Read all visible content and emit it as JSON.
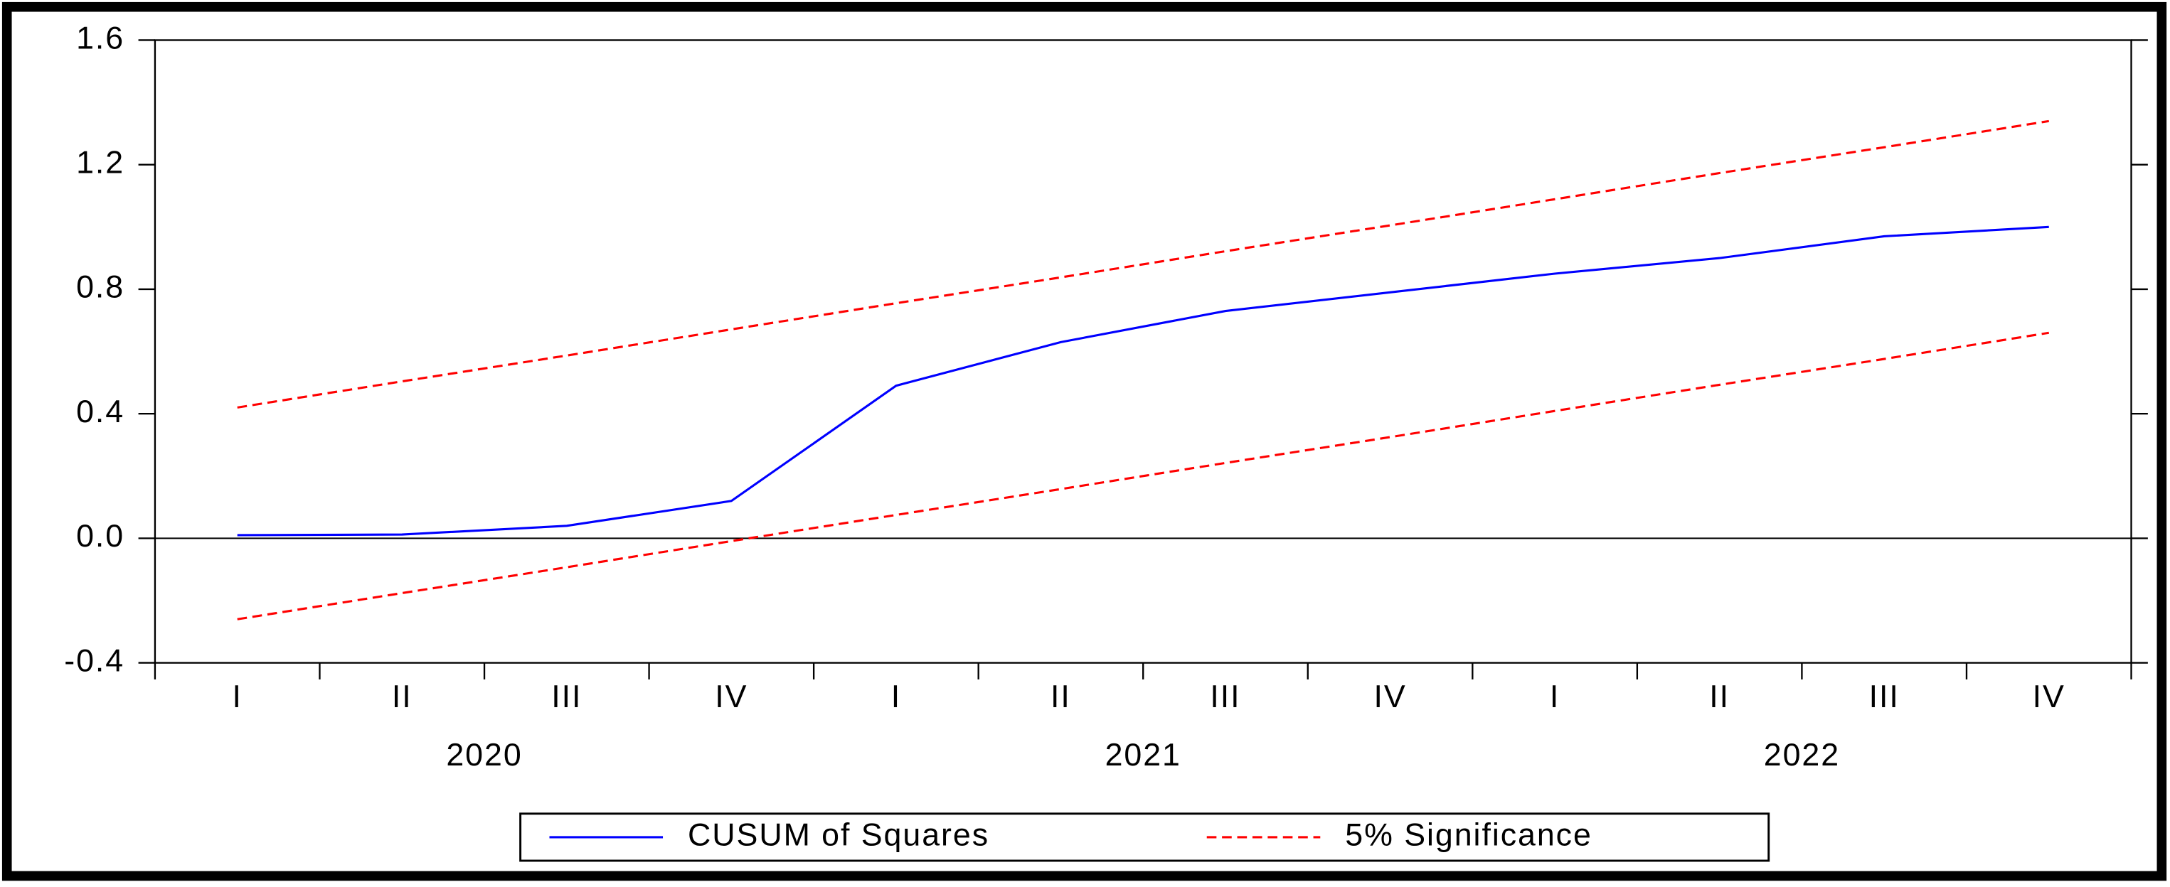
{
  "chart_data": {
    "type": "line",
    "categories": [
      "I",
      "II",
      "III",
      "IV",
      "I",
      "II",
      "III",
      "IV",
      "I",
      "II",
      "III",
      "IV"
    ],
    "years": [
      "2020",
      "2021",
      "2022"
    ],
    "ylim": [
      -0.4,
      1.6
    ],
    "yticks": [
      -0.4,
      {
        "value": 0,
        "label": "0.0"
      },
      0.4,
      0.8,
      1.2,
      1.6
    ],
    "series": [
      {
        "name": "CUSUM of Squares",
        "color": "#0000ff",
        "dashed": false,
        "values": [
          0.01,
          0.012,
          0.04,
          0.12,
          0.49,
          0.63,
          0.73,
          0.79,
          0.85,
          0.9,
          0.97,
          1.0
        ]
      },
      {
        "name": "5% Significance",
        "color": "#ff0000",
        "dashed": true,
        "upper": [
          0.42,
          0.504,
          0.587,
          0.671,
          0.755,
          0.838,
          0.922,
          1.005,
          1.089,
          1.173,
          1.256,
          1.34
        ],
        "lower": [
          -0.26,
          -0.176,
          -0.093,
          -0.009,
          0.075,
          0.158,
          0.242,
          0.325,
          0.409,
          0.493,
          0.576,
          0.66
        ]
      }
    ]
  }
}
